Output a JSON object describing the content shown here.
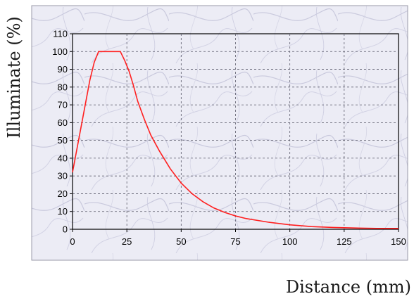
{
  "chart_data": {
    "type": "line",
    "title": "",
    "xlabel": "Distance (mm)",
    "ylabel": "Illuminate (%)",
    "xlim": [
      0,
      150
    ],
    "ylim": [
      0,
      110
    ],
    "x_ticks": [
      "0",
      "25",
      "50",
      "75",
      "100",
      "125",
      "150"
    ],
    "y_ticks": [
      "0",
      "10",
      "20",
      "30",
      "40",
      "50",
      "60",
      "70",
      "80",
      "90",
      "100",
      "110"
    ],
    "grid": true,
    "legend": "none",
    "colors": {
      "series": "#ff2020",
      "plot_background": "#e9e9f4",
      "grid": "#5a5a6a"
    },
    "series": [
      {
        "x": [
          0,
          2,
          4,
          6,
          8,
          10,
          12,
          14,
          16,
          18,
          20,
          22,
          24,
          26,
          28,
          30,
          33,
          36,
          40,
          45,
          50,
          55,
          60,
          65,
          70,
          75,
          80,
          90,
          100,
          110,
          120,
          130,
          140,
          150
        ],
        "values": [
          32,
          45,
          58,
          71,
          84,
          94,
          100,
          100,
          100,
          100,
          100,
          100,
          95,
          89,
          81,
          72,
          62,
          53,
          44,
          34,
          26,
          20,
          15.5,
          12,
          9.5,
          7.5,
          6,
          4,
          2.5,
          1.5,
          1,
          0.7,
          0.5,
          0.5
        ]
      }
    ]
  }
}
